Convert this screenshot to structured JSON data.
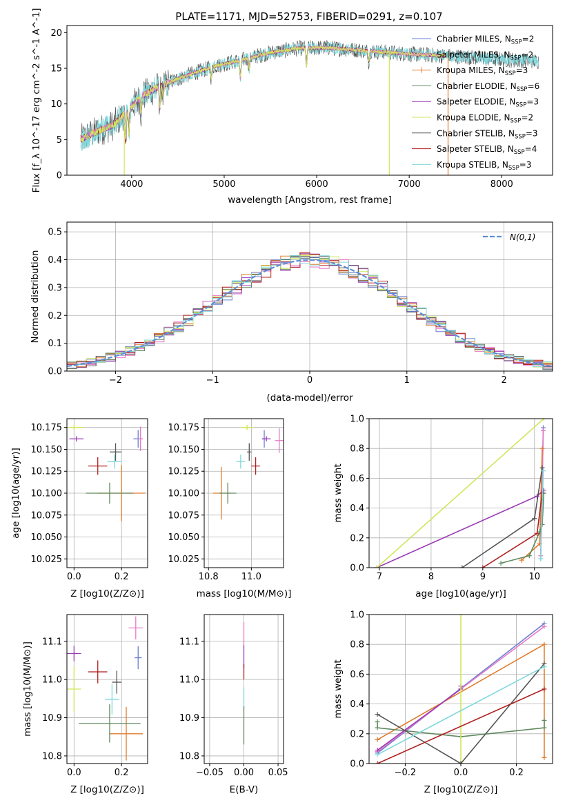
{
  "title": "PLATE=1171, MJD=52753, FIBERID=0291, z=0.107",
  "colors": {
    "Chabrier MILES": "#6a7fd0",
    "Salpeter MILES": "#e879c8",
    "Kroupa MILES": "#e07b2a",
    "Chabrier ELODIE": "#5f8a5f",
    "Salpeter ELODIE": "#9a3bb5",
    "Kroupa ELODIE": "#cde85a",
    "Chabrier STELIB": "#555555",
    "Salpeter STELIB": "#b0201f",
    "Kroupa STELIB": "#7fd8dc"
  },
  "chart_data": [
    {
      "id": "spectrum",
      "type": "line",
      "xlabel": "wavelength [Angstrom, rest frame]",
      "ylabel": "Flux [f_λ 10^-17 erg cm^-2 s^-1 A^-1]",
      "xlim": [
        3300,
        8550
      ],
      "ylim": [
        0,
        21
      ],
      "xticks": [
        4000,
        5000,
        6000,
        7000,
        8000
      ],
      "yticks": [
        0,
        5,
        10,
        15,
        20
      ],
      "legend_position": "right",
      "legend": [
        {
          "label": "Chabrier MILES, N",
          "sub": "SSP",
          "count": "=2",
          "color_key": "Chabrier MILES"
        },
        {
          "label": "Salpeter MILES, N",
          "sub": "SSP",
          "count": "=2",
          "color_key": "Salpeter MILES"
        },
        {
          "label": "Kroupa MILES, N",
          "sub": "SSP",
          "count": "=3",
          "color_key": "Kroupa MILES"
        },
        {
          "label": "Chabrier ELODIE, N",
          "sub": "SSP",
          "count": "=6",
          "color_key": "Chabrier ELODIE"
        },
        {
          "label": "Salpeter ELODIE, N",
          "sub": "SSP",
          "count": "=3",
          "color_key": "Salpeter ELODIE"
        },
        {
          "label": "Kroupa ELODIE, N",
          "sub": "SSP",
          "count": "=2",
          "color_key": "Kroupa ELODIE"
        },
        {
          "label": "Chabrier STELIB, N",
          "sub": "SSP",
          "count": "=3",
          "color_key": "Chabrier STELIB"
        },
        {
          "label": "Salpeter STELIB, N",
          "sub": "SSP",
          "count": "=4",
          "color_key": "Salpeter STELIB"
        },
        {
          "label": "Kroupa STELIB, N",
          "sub": "SSP",
          "count": "=3",
          "color_key": "Kroupa STELIB"
        }
      ],
      "continuum": [
        [
          3450,
          5.0
        ],
        [
          3600,
          6.0
        ],
        [
          3800,
          7.0
        ],
        [
          3950,
          9.0
        ],
        [
          4100,
          11.0
        ],
        [
          4300,
          12.5
        ],
        [
          4600,
          14.0
        ],
        [
          4900,
          15.3
        ],
        [
          5200,
          16.2
        ],
        [
          5500,
          17.2
        ],
        [
          5800,
          17.8
        ],
        [
          6100,
          17.9
        ],
        [
          6400,
          17.6
        ],
        [
          6700,
          17.3
        ],
        [
          7000,
          17.0
        ],
        [
          7300,
          16.8
        ],
        [
          7600,
          16.6
        ],
        [
          7900,
          16.3
        ],
        [
          8200,
          16.1
        ],
        [
          8400,
          16.0
        ]
      ],
      "absorption_features": [
        [
          3934,
          4.0
        ],
        [
          3969,
          3.5
        ],
        [
          4102,
          2.5
        ],
        [
          4304,
          3.0
        ],
        [
          4340,
          2.0
        ],
        [
          4861,
          1.5
        ],
        [
          5175,
          2.5
        ],
        [
          5270,
          1.5
        ],
        [
          5890,
          2.5
        ],
        [
          6563,
          1.5
        ]
      ],
      "spikes": [
        {
          "x": 3920,
          "y0": 0,
          "y1": 7,
          "color_key": "Kroupa ELODIE"
        },
        {
          "x": 6785,
          "y0": 0,
          "y1": 17,
          "color_key": "Kroupa ELODIE"
        },
        {
          "x": 7420,
          "y0": 0,
          "y1": 17,
          "color_key": "Kroupa MILES"
        }
      ]
    },
    {
      "id": "residuals",
      "type": "histogram",
      "xlabel": "(data-model)/error",
      "ylabel": "Normed distribution",
      "xlim": [
        -2.5,
        2.5
      ],
      "ylim": [
        0,
        0.535
      ],
      "xticks": [
        -2,
        -1,
        0,
        1,
        2
      ],
      "yticks": [
        0.0,
        0.1,
        0.2,
        0.3,
        0.4,
        0.5
      ],
      "grid": true,
      "bin_width": 0.1,
      "reference_curve": {
        "label": "N(0,1)",
        "type": "gaussian",
        "mean": 0,
        "sigma": 1,
        "color": "#5b8fd6",
        "style": "dashed"
      },
      "legend_position": "top-right"
    },
    {
      "id": "age-vs-Z",
      "type": "errorbar",
      "xlabel": "Z [log10(Z/Z⊙)]",
      "ylabel": "age [log10(age/yr)]",
      "xlim": [
        -0.03,
        0.31
      ],
      "ylim": [
        10.015,
        10.185
      ],
      "xticks": [
        0.0,
        0.2
      ],
      "yticks": [
        10.025,
        10.05,
        10.075,
        10.1,
        10.125,
        10.15,
        10.175
      ],
      "grid": true,
      "points": [
        {
          "key": "Chabrier MILES",
          "x": 0.27,
          "y": 10.162,
          "xerr": 0.02,
          "yerr": 0.01
        },
        {
          "key": "Salpeter MILES",
          "x": 0.28,
          "y": 10.162,
          "xerr": 0.01,
          "yerr": 0.014
        },
        {
          "key": "Kroupa MILES",
          "x": 0.2,
          "y": 10.1,
          "xerr": 0.1,
          "yerr": 0.032
        },
        {
          "key": "Chabrier ELODIE",
          "x": 0.15,
          "y": 10.1,
          "xerr": 0.1,
          "yerr": 0.012
        },
        {
          "key": "Salpeter ELODIE",
          "x": 0.01,
          "y": 10.162,
          "xerr": 0.03,
          "yerr": 0.003
        },
        {
          "key": "Kroupa ELODIE",
          "x": 0.0,
          "y": 10.175,
          "xerr": 0.04,
          "yerr": 0.003
        },
        {
          "key": "Chabrier STELIB",
          "x": 0.175,
          "y": 10.147,
          "xerr": 0.025,
          "yerr": 0.01
        },
        {
          "key": "Salpeter STELIB",
          "x": 0.1,
          "y": 10.131,
          "xerr": 0.04,
          "yerr": 0.01
        },
        {
          "key": "Kroupa STELIB",
          "x": 0.17,
          "y": 10.136,
          "xerr": 0.03,
          "yerr": 0.008
        }
      ]
    },
    {
      "id": "age-vs-mass",
      "type": "errorbar",
      "xlabel": "mass [log10(M/M⊙)]",
      "ylabel": "",
      "xlim": [
        10.78,
        11.15
      ],
      "ylim": [
        10.015,
        10.185
      ],
      "xticks": [
        10.8,
        11.0
      ],
      "yticks": [
        10.025,
        10.05,
        10.075,
        10.1,
        10.125,
        10.15,
        10.175
      ],
      "grid": true,
      "points": [
        {
          "key": "Chabrier MILES",
          "x": 11.06,
          "y": 10.162,
          "xerr": 0.01,
          "yerr": 0.01
        },
        {
          "key": "Salpeter MILES",
          "x": 11.13,
          "y": 10.16,
          "xerr": 0.02,
          "yerr": 0.014
        },
        {
          "key": "Kroupa MILES",
          "x": 10.86,
          "y": 10.1,
          "xerr": 0.04,
          "yerr": 0.03
        },
        {
          "key": "Chabrier ELODIE",
          "x": 10.89,
          "y": 10.1,
          "xerr": 0.04,
          "yerr": 0.012
        },
        {
          "key": "Salpeter ELODIE",
          "x": 11.07,
          "y": 10.162,
          "xerr": 0.02,
          "yerr": 0.003
        },
        {
          "key": "Kroupa ELODIE",
          "x": 10.98,
          "y": 10.175,
          "xerr": 0.03,
          "yerr": 0.003
        },
        {
          "key": "Chabrier STELIB",
          "x": 10.99,
          "y": 10.147,
          "xerr": 0.01,
          "yerr": 0.01
        },
        {
          "key": "Salpeter STELIB",
          "x": 11.02,
          "y": 10.131,
          "xerr": 0.02,
          "yerr": 0.01
        },
        {
          "key": "Kroupa STELIB",
          "x": 10.95,
          "y": 10.136,
          "xerr": 0.02,
          "yerr": 0.008
        }
      ]
    },
    {
      "id": "weight-vs-age",
      "type": "line",
      "xlabel": "age  [log10(age/yr)]",
      "ylabel": "mass weight",
      "xlim": [
        6.8,
        10.35
      ],
      "ylim": [
        0,
        1
      ],
      "xticks": [
        7,
        8,
        9,
        10
      ],
      "yticks": [
        0.0,
        0.2,
        0.4,
        0.6,
        0.8,
        1.0
      ],
      "grid": true,
      "series": [
        {
          "key": "Chabrier MILES",
          "points": [
            [
              10.12,
              0.06
            ],
            [
              10.17,
              0.94
            ]
          ]
        },
        {
          "key": "Salpeter MILES",
          "points": [
            [
              10.12,
              0.08
            ],
            [
              10.17,
              0.92
            ]
          ]
        },
        {
          "key": "Kroupa MILES",
          "points": [
            [
              9.75,
              0.05
            ],
            [
              10.1,
              0.16
            ],
            [
              10.15,
              0.8
            ]
          ]
        },
        {
          "key": "Chabrier ELODIE",
          "points": [
            [
              9.35,
              0.03
            ],
            [
              9.9,
              0.08
            ],
            [
              10.1,
              0.24
            ],
            [
              10.15,
              0.29
            ],
            [
              10.18,
              0.5
            ]
          ]
        },
        {
          "key": "Salpeter ELODIE",
          "points": [
            [
              6.95,
              0.0
            ],
            [
              10.05,
              0.48
            ],
            [
              10.18,
              0.52
            ]
          ]
        },
        {
          "key": "Kroupa ELODIE",
          "points": [
            [
              6.95,
              0.0
            ],
            [
              10.18,
              1.0
            ]
          ]
        },
        {
          "key": "Chabrier STELIB",
          "points": [
            [
              8.6,
              0.0
            ],
            [
              10.0,
              0.33
            ],
            [
              10.15,
              0.67
            ]
          ]
        },
        {
          "key": "Salpeter STELIB",
          "points": [
            [
              9.0,
              0.0
            ],
            [
              10.05,
              0.23
            ],
            [
              10.15,
              0.5
            ]
          ]
        },
        {
          "key": "Kroupa STELIB",
          "points": [
            [
              10.12,
              0.06
            ],
            [
              10.17,
              0.65
            ]
          ]
        }
      ]
    },
    {
      "id": "mass-vs-Z",
      "type": "errorbar",
      "xlabel": "Z [log10(Z/Z⊙)]",
      "ylabel": "mass [log10(M/M⊙)]",
      "xlim": [
        -0.03,
        0.31
      ],
      "ylim": [
        10.78,
        11.17
      ],
      "xticks": [
        0.0,
        0.2
      ],
      "yticks": [
        10.8,
        10.9,
        11.0,
        11.1
      ],
      "grid": true,
      "points": [
        {
          "key": "Chabrier MILES",
          "x": 0.27,
          "y": 11.057,
          "xerr": 0.015,
          "yerr": 0.03
        },
        {
          "key": "Salpeter MILES",
          "x": 0.26,
          "y": 11.135,
          "xerr": 0.03,
          "yerr": 0.03
        },
        {
          "key": "Kroupa MILES",
          "x": 0.22,
          "y": 10.858,
          "xerr": 0.07,
          "yerr": 0.07
        },
        {
          "key": "Chabrier ELODIE",
          "x": 0.15,
          "y": 10.885,
          "xerr": 0.13,
          "yerr": 0.05
        },
        {
          "key": "Salpeter ELODIE",
          "x": 0.0,
          "y": 11.068,
          "xerr": 0.03,
          "yerr": 0.02
        },
        {
          "key": "Kroupa ELODIE",
          "x": 0.0,
          "y": 10.975,
          "xerr": 0.03,
          "yerr": 0.06
        },
        {
          "key": "Chabrier STELIB",
          "x": 0.18,
          "y": 10.993,
          "xerr": 0.02,
          "yerr": 0.03
        },
        {
          "key": "Salpeter STELIB",
          "x": 0.1,
          "y": 11.02,
          "xerr": 0.04,
          "yerr": 0.03
        },
        {
          "key": "Kroupa STELIB",
          "x": 0.16,
          "y": 10.948,
          "xerr": 0.03,
          "yerr": 0.04
        }
      ]
    },
    {
      "id": "mass-vs-EBV",
      "type": "errorbar",
      "xlabel": "E(B-V)",
      "ylabel": "",
      "xlim": [
        -0.058,
        0.058
      ],
      "ylim": [
        10.78,
        11.17
      ],
      "xticks": [
        -0.05,
        0.0,
        0.05
      ],
      "yticks": [
        10.8,
        10.9,
        11.0,
        11.1
      ],
      "grid": true,
      "points": [
        {
          "key": "Salpeter MILES",
          "x": 0.0,
          "y": 11.12,
          "xerr": 0.0,
          "yerr": 0.03
        },
        {
          "key": "Salpeter ELODIE",
          "x": 0.0,
          "y": 11.06,
          "xerr": 0.0,
          "yerr": 0.03
        },
        {
          "key": "Salpeter STELIB",
          "x": 0.0,
          "y": 11.02,
          "xerr": 0.0,
          "yerr": 0.02
        },
        {
          "key": "Kroupa STELIB",
          "x": 0.0,
          "y": 10.95,
          "xerr": 0.0,
          "yerr": 0.03
        },
        {
          "key": "Chabrier ELODIE",
          "x": 0.0,
          "y": 10.88,
          "xerr": 0.0,
          "yerr": 0.05
        }
      ]
    },
    {
      "id": "weight-vs-Z",
      "type": "line",
      "xlabel": "Z [log10(Z/Z⊙)]",
      "ylabel": "mass weight",
      "xlim": [
        -0.33,
        0.33
      ],
      "ylim": [
        0,
        1
      ],
      "xticks": [
        -0.2,
        0.0,
        0.2
      ],
      "yticks": [
        0.0,
        0.2,
        0.4,
        0.6,
        0.8,
        1.0
      ],
      "grid": true,
      "series": [
        {
          "key": "Chabrier MILES",
          "points": [
            [
              -0.3,
              0.07
            ],
            [
              0.3,
              0.94
            ]
          ]
        },
        {
          "key": "Salpeter MILES",
          "points": [
            [
              -0.3,
              0.08
            ],
            [
              0.0,
              0.5
            ],
            [
              0.3,
              0.92
            ]
          ]
        },
        {
          "key": "Kroupa MILES",
          "points": [
            [
              -0.3,
              0.16
            ],
            [
              0.3,
              0.8
            ],
            [
              0.3,
              0.04
            ]
          ]
        },
        {
          "key": "Chabrier ELODIE",
          "points": [
            [
              -0.3,
              0.28
            ],
            [
              -0.3,
              0.24
            ],
            [
              0.0,
              0.18
            ],
            [
              0.3,
              0.24
            ],
            [
              0.3,
              0.29
            ]
          ]
        },
        {
          "key": "Salpeter ELODIE",
          "points": [
            [
              -0.3,
              0.09
            ],
            [
              0.0,
              0.5
            ],
            [
              0.0,
              0.52
            ]
          ]
        },
        {
          "key": "Kroupa ELODIE",
          "points": [
            [
              0.0,
              0.0
            ],
            [
              0.0,
              1.0
            ]
          ]
        },
        {
          "key": "Chabrier STELIB",
          "points": [
            [
              -0.3,
              0.33
            ],
            [
              0.0,
              0.0
            ],
            [
              0.3,
              0.67
            ]
          ]
        },
        {
          "key": "Salpeter STELIB",
          "points": [
            [
              -0.3,
              0.0
            ],
            [
              0.3,
              0.5
            ]
          ]
        },
        {
          "key": "Kroupa STELIB",
          "points": [
            [
              -0.3,
              0.06
            ],
            [
              0.3,
              0.65
            ]
          ]
        }
      ]
    }
  ]
}
